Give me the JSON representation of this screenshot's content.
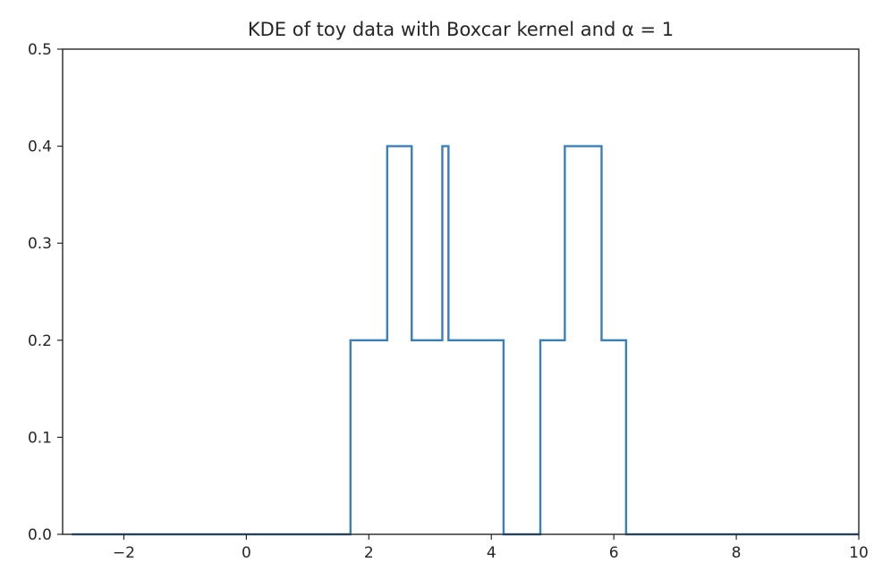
{
  "chart_data": {
    "type": "line",
    "title": "KDE of toy data with Boxcar kernel and α = 1",
    "xlabel": "",
    "ylabel": "",
    "xlim": [
      -3,
      10
    ],
    "ylim": [
      0,
      0.5
    ],
    "xticks": [
      "−2",
      "0",
      "2",
      "4",
      "6",
      "8",
      "10"
    ],
    "xtick_values": [
      -2,
      0,
      2,
      4,
      6,
      8,
      10
    ],
    "yticks": [
      "0.0",
      "0.1",
      "0.2",
      "0.3",
      "0.4",
      "0.5"
    ],
    "ytick_values": [
      0,
      0.1,
      0.2,
      0.3,
      0.4,
      0.5
    ],
    "grid": false,
    "series": [
      {
        "color": "#3a7fb8",
        "x": [
          -2.85,
          1.7,
          1.7,
          2.3,
          2.3,
          2.7,
          2.7,
          3.2,
          3.2,
          3.3,
          3.3,
          4.2,
          4.2,
          4.8,
          4.8,
          5.2,
          5.2,
          5.8,
          5.8,
          6.2,
          6.2,
          10.0
        ],
        "y": [
          0.0,
          0.0,
          0.2,
          0.2,
          0.4,
          0.4,
          0.2,
          0.2,
          0.4,
          0.4,
          0.2,
          0.2,
          0.0,
          0.0,
          0.2,
          0.2,
          0.4,
          0.4,
          0.2,
          0.2,
          0.0,
          0.0
        ]
      }
    ]
  }
}
